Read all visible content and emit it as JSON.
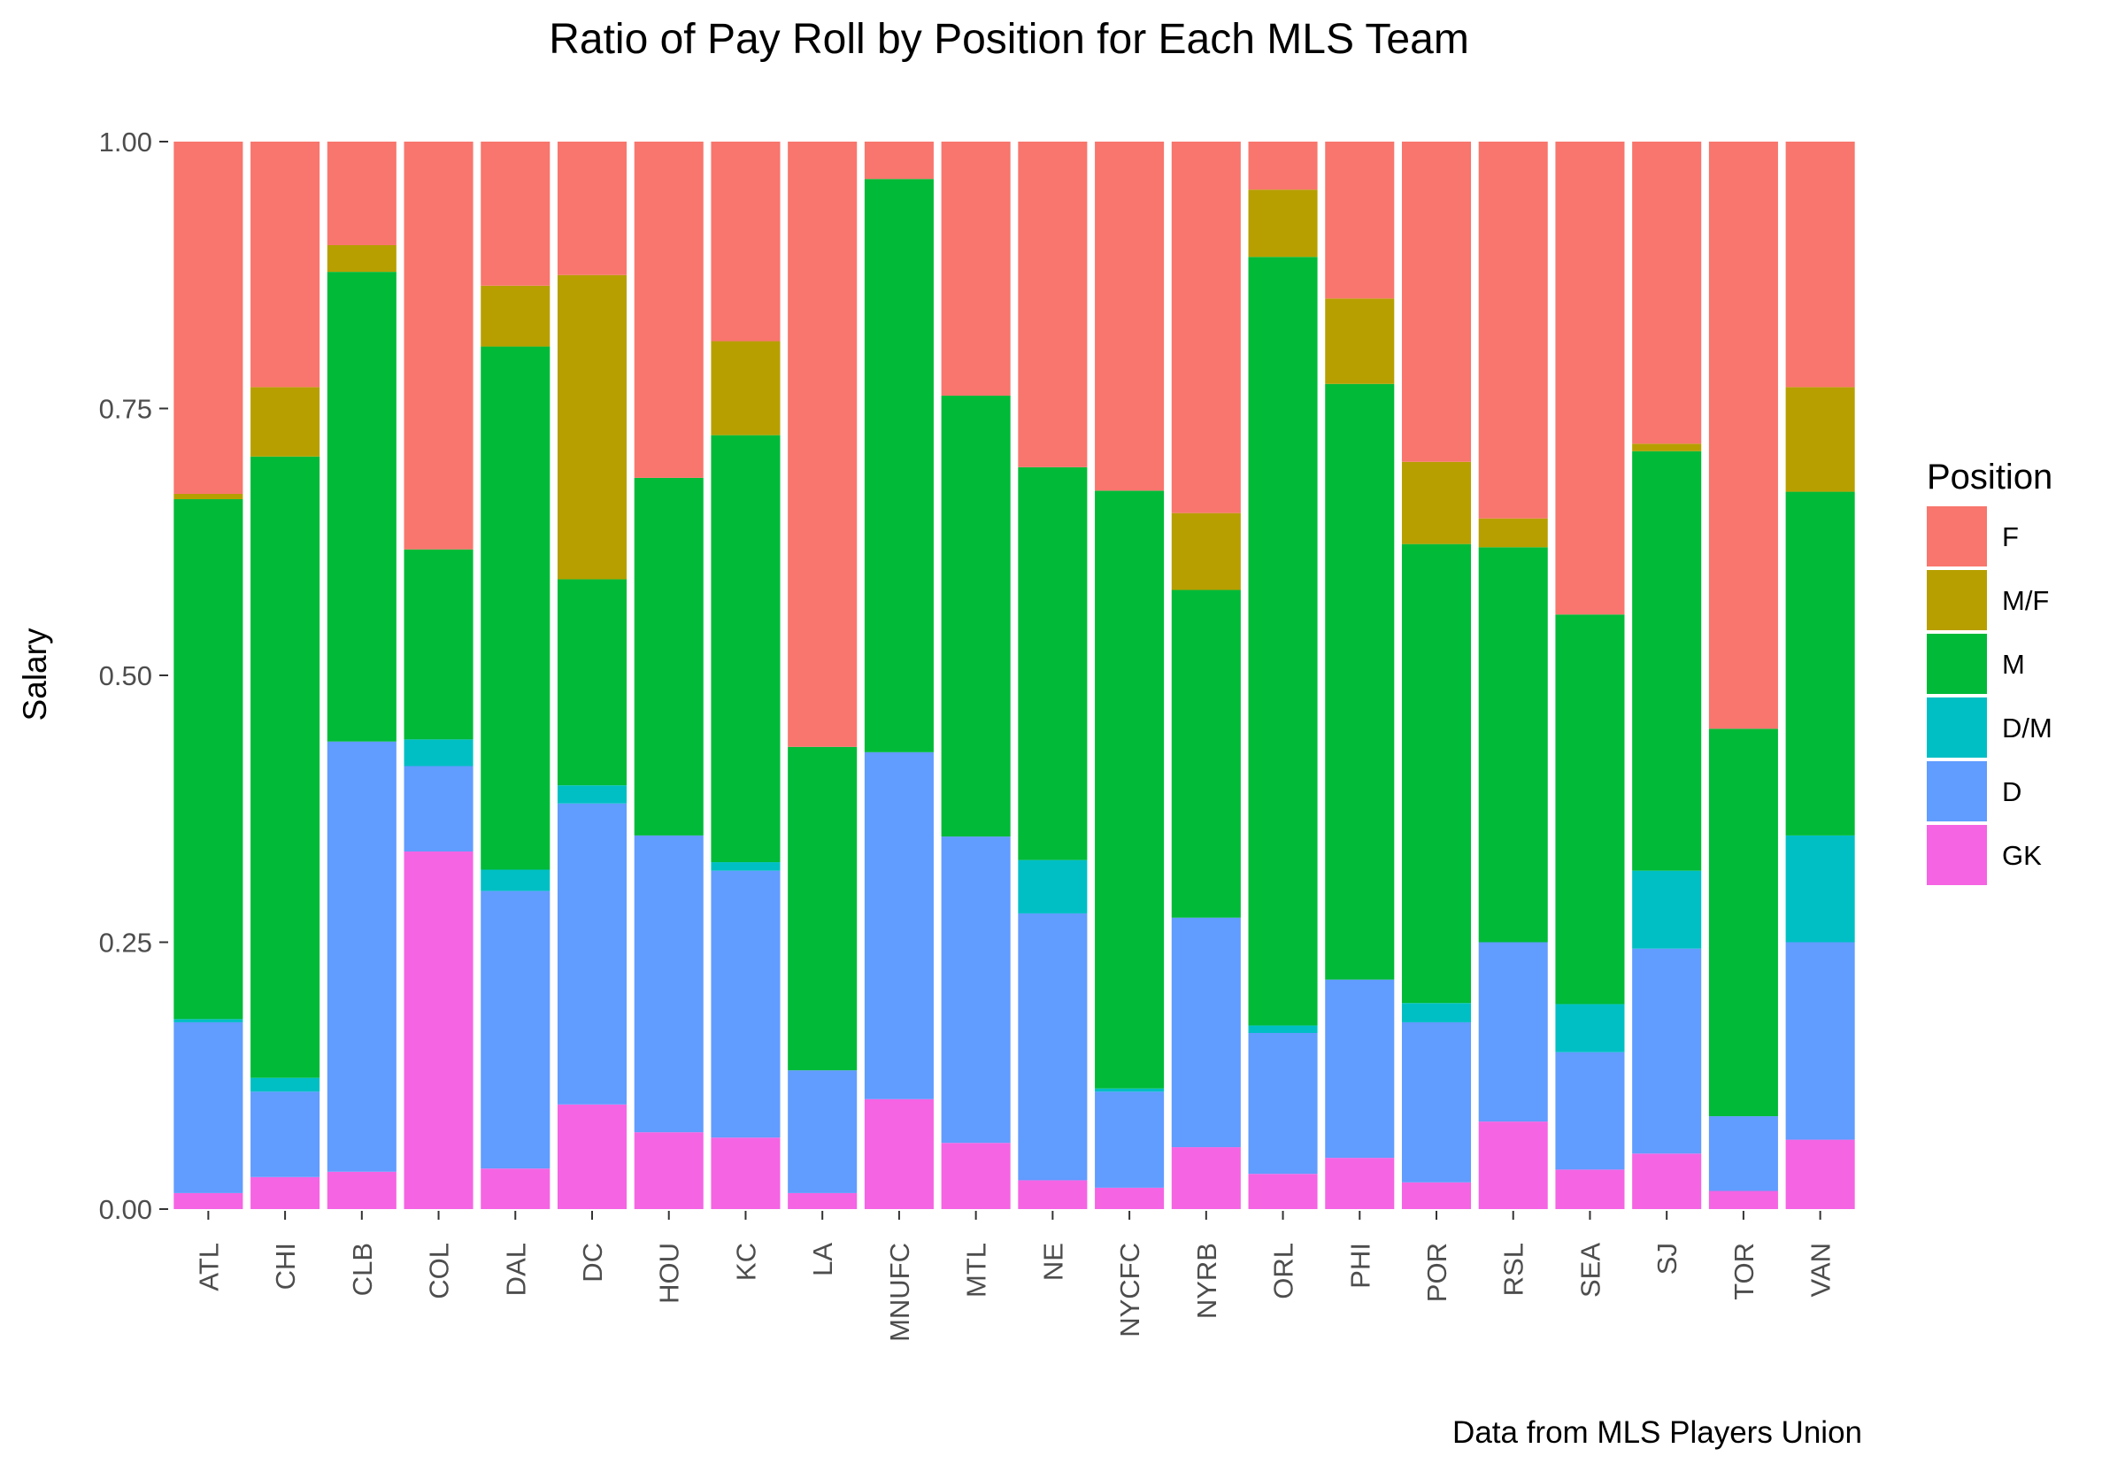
{
  "chart_data": {
    "type": "bar",
    "stacked": true,
    "title": "Ratio of Pay Roll by Position for Each MLS Team",
    "xlabel": "",
    "ylabel": "Salary",
    "caption": "Data from MLS Players Union",
    "ylim": [
      0,
      1
    ],
    "yticks": [
      0,
      0.25,
      0.5,
      0.75,
      1
    ],
    "ytick_labels": [
      "0.00",
      "0.25",
      "0.50",
      "0.75",
      "1.00"
    ],
    "categories": [
      "ATL",
      "CHI",
      "CLB",
      "COL",
      "DAL",
      "DC",
      "HOU",
      "KC",
      "LA",
      "MNUFC",
      "MTL",
      "NE",
      "NYCFC",
      "NYRB",
      "ORL",
      "PHI",
      "POR",
      "RSL",
      "SEA",
      "SJ",
      "TOR",
      "VAN"
    ],
    "legend": {
      "title": "Position",
      "placement": "right",
      "entries": [
        "F",
        "M/F",
        "M",
        "D/M",
        "D",
        "GK"
      ]
    },
    "colors": {
      "F": "#F8766D",
      "M/F": "#B79F00",
      "M": "#00BA38",
      "D/M": "#00BFC4",
      "D": "#619CFF",
      "GK": "#F564E3"
    },
    "stack_order_bottom_to_top": [
      "GK",
      "D",
      "D/M",
      "M",
      "M/F",
      "F"
    ],
    "series": [
      {
        "name": "GK",
        "values": [
          0.015,
          0.03,
          0.035,
          0.335,
          0.038,
          0.098,
          0.072,
          0.067,
          0.015,
          0.103,
          0.062,
          0.027,
          0.02,
          0.058,
          0.033,
          0.048,
          0.025,
          0.082,
          0.037,
          0.052,
          0.017,
          0.065
        ]
      },
      {
        "name": "D",
        "values": [
          0.16,
          0.08,
          0.403,
          0.08,
          0.26,
          0.282,
          0.278,
          0.25,
          0.115,
          0.325,
          0.287,
          0.25,
          0.09,
          0.215,
          0.132,
          0.167,
          0.15,
          0.168,
          0.11,
          0.192,
          0.07,
          0.185
        ]
      },
      {
        "name": "D/M",
        "values": [
          0.003,
          0.013,
          0.0,
          0.025,
          0.02,
          0.017,
          0.0,
          0.008,
          0.0,
          0.0,
          0.0,
          0.05,
          0.003,
          0.0,
          0.007,
          0.0,
          0.018,
          0.0,
          0.045,
          0.073,
          0.0,
          0.1
        ]
      },
      {
        "name": "M",
        "values": [
          0.487,
          0.582,
          0.44,
          0.178,
          0.49,
          0.193,
          0.335,
          0.4,
          0.303,
          0.537,
          0.413,
          0.368,
          0.56,
          0.307,
          0.72,
          0.558,
          0.43,
          0.37,
          0.365,
          0.393,
          0.363,
          0.322
        ]
      },
      {
        "name": "M/F",
        "values": [
          0.005,
          0.065,
          0.025,
          0.0,
          0.057,
          0.285,
          0.0,
          0.088,
          0.0,
          0.0,
          0.0,
          0.0,
          0.0,
          0.072,
          0.063,
          0.08,
          0.077,
          0.027,
          0.0,
          0.007,
          0.0,
          0.098
        ]
      },
      {
        "name": "F",
        "values": [
          0.33,
          0.23,
          0.097,
          0.382,
          0.135,
          0.125,
          0.315,
          0.187,
          0.567,
          0.035,
          0.238,
          0.305,
          0.327,
          0.348,
          0.045,
          0.147,
          0.3,
          0.353,
          0.443,
          0.283,
          0.55,
          0.23
        ]
      }
    ]
  }
}
